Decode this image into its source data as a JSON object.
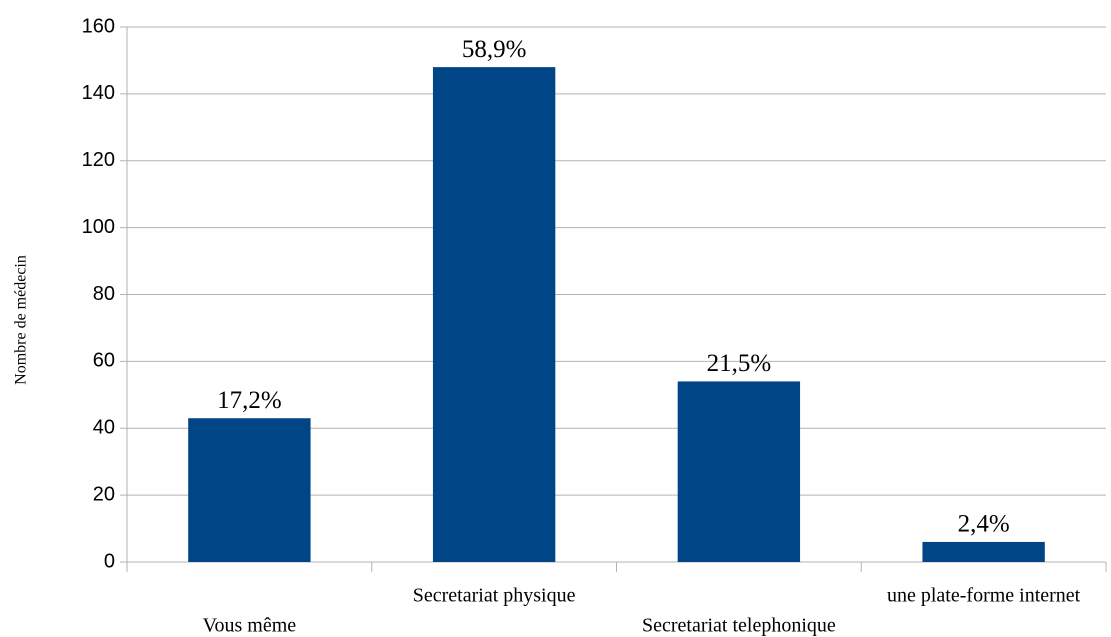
{
  "chart_data": {
    "type": "bar",
    "y_label": "Nombre de médecin",
    "categories": [
      "Vous même",
      "Secretariat physique",
      "Secretariat telephonique",
      "une plate-forme internet"
    ],
    "values": [
      43,
      148,
      54,
      6
    ],
    "annotations": [
      "17,2%",
      "58,9%",
      "21,5%",
      "2,4%"
    ],
    "color": "#004586",
    "ylim": [
      0,
      160
    ],
    "yticks": [
      0,
      20,
      40,
      60,
      80,
      100,
      120,
      140,
      160
    ],
    "grid": true
  }
}
